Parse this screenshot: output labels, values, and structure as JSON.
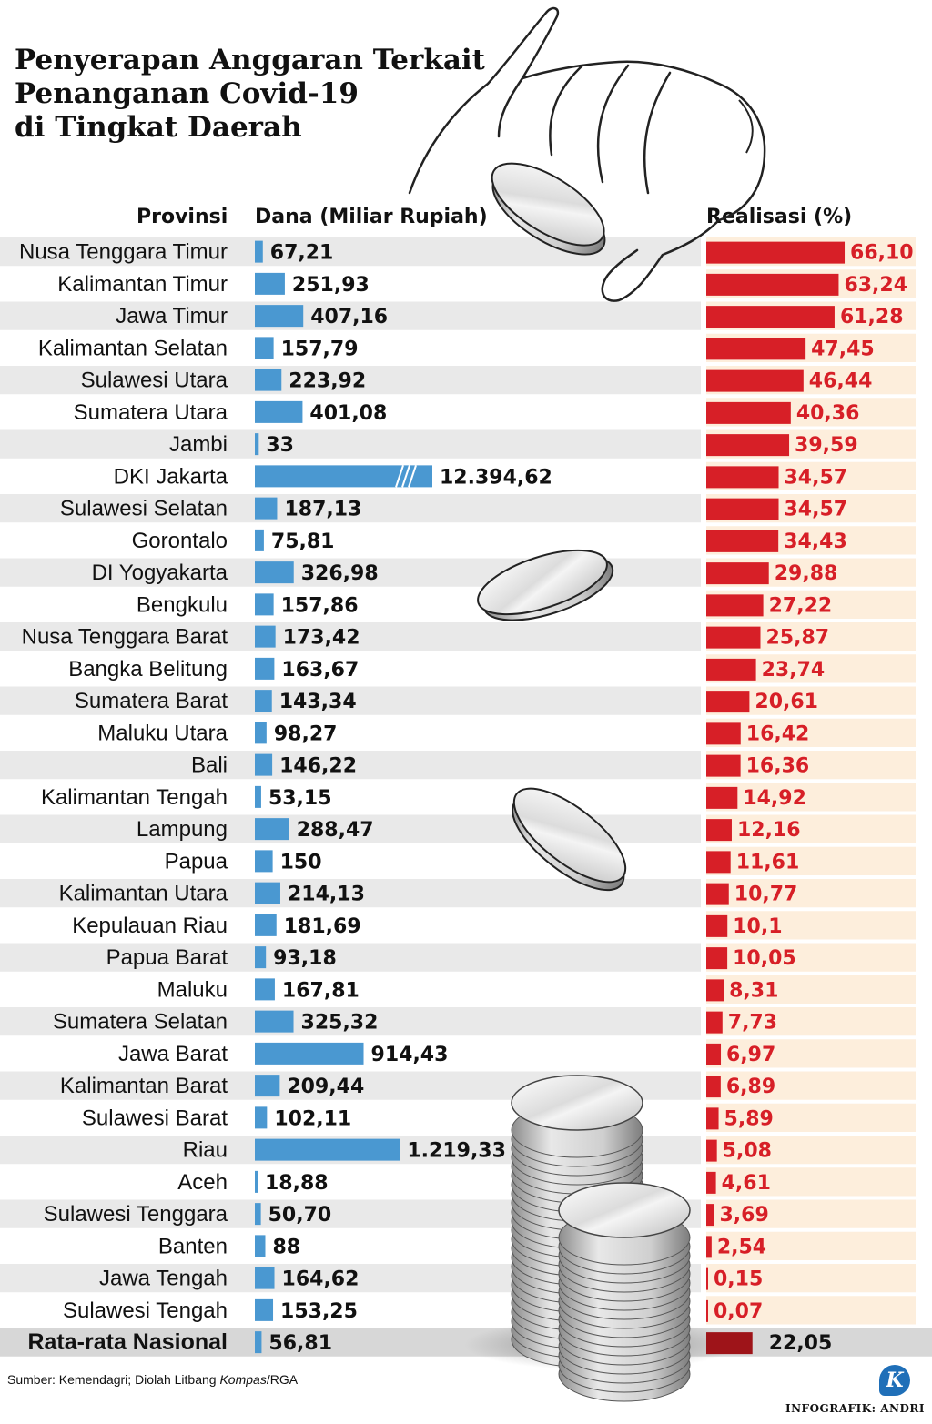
{
  "title_lines": [
    "Penyerapan Anggaran Terkait",
    "Penanganan Covid-19",
    "di Tingkat Daerah"
  ],
  "source": {
    "prefix": "Sumber: Kemendagri; Diolah Litbang ",
    "italic": "Kompas",
    "suffix": "/RGA"
  },
  "credit": "INFOGRAFIK: ANDRI",
  "logo_letter": "K",
  "colors": {
    "dana_bar": "#4a98d1",
    "realisasi_bar": "#d71f27",
    "realisasi_avg_bar": "#9e1419",
    "realisasi_value_text": "#d71f27",
    "stripe_left": "#e9e9e9",
    "stripe_right": "#fdeedc",
    "avg_band": "#d7d7d7"
  },
  "chart_data": {
    "type": "bar",
    "title": "Penyerapan Anggaran Terkait Penanganan Covid-19 di Tingkat Daerah",
    "category_header": "Provinsi",
    "categories": [
      "Nusa Tenggara Timur",
      "Kalimantan Timur",
      "Jawa Timur",
      "Kalimantan Selatan",
      "Sulawesi Utara",
      "Sumatera Utara",
      "Jambi",
      "DKI Jakarta",
      "Sulawesi Selatan",
      "Gorontalo",
      "DI Yogyakarta",
      "Bengkulu",
      "Nusa Tenggara Barat",
      "Bangka Belitung",
      "Sumatera Barat",
      "Maluku Utara",
      "Bali",
      "Kalimantan Tengah",
      "Lampung",
      "Papua",
      "Kalimantan Utara",
      "Kepulauan Riau",
      "Papua Barat",
      "Maluku",
      "Sumatera Selatan",
      "Jawa Barat",
      "Kalimantan Barat",
      "Sulawesi Barat",
      "Riau",
      "Aceh",
      "Sulawesi Tenggara",
      "Banten",
      "Jawa Tengah",
      "Sulawesi Tengah"
    ],
    "series": [
      {
        "name": "Dana (Miliar Rupiah)",
        "values": [
          67.21,
          251.93,
          407.16,
          157.79,
          223.92,
          401.08,
          33,
          12394.62,
          187.13,
          75.81,
          326.98,
          157.86,
          173.42,
          163.67,
          143.34,
          98.27,
          146.22,
          53.15,
          288.47,
          150,
          214.13,
          181.69,
          93.18,
          167.81,
          325.32,
          914.43,
          209.44,
          102.11,
          1219.33,
          18.88,
          50.7,
          88,
          164.62,
          153.25
        ],
        "labels": [
          "67,21",
          "251,93",
          "407,16",
          "157,79",
          "223,92",
          "401,08",
          "33",
          "12.394,62",
          "187,13",
          "75,81",
          "326,98",
          "157,86",
          "173,42",
          "163,67",
          "143,34",
          "98,27",
          "146,22",
          "53,15",
          "288,47",
          "150",
          "214,13",
          "181,69",
          "93,18",
          "167,81",
          "325,32",
          "914,43",
          "209,44",
          "102,11",
          "1.219,33",
          "18,88",
          "50,70",
          "88",
          "164,62",
          "153,25"
        ],
        "axis_break_category": "DKI Jakarta"
      },
      {
        "name": "Realisasi (%)",
        "values": [
          66.1,
          63.24,
          61.28,
          47.45,
          46.44,
          40.36,
          39.59,
          34.57,
          34.57,
          34.43,
          29.88,
          27.22,
          25.87,
          23.74,
          20.61,
          16.42,
          16.36,
          14.92,
          12.16,
          11.61,
          10.77,
          10.1,
          10.05,
          8.31,
          7.73,
          6.97,
          6.89,
          5.89,
          5.08,
          4.61,
          3.69,
          2.54,
          0.15,
          0.07
        ],
        "labels": [
          "66,10",
          "63,24",
          "61,28",
          "47,45",
          "46,44",
          "40,36",
          "39,59",
          "34,57",
          "34,57",
          "34,43",
          "29,88",
          "27,22",
          "25,87",
          "23,74",
          "20,61",
          "16,42",
          "16,36",
          "14,92",
          "12,16",
          "11,61",
          "10,77",
          "10,1",
          "10,05",
          "8,31",
          "7,73",
          "6,97",
          "6,89",
          "5,89",
          "5,08",
          "4,61",
          "3,69",
          "2,54",
          "0,15",
          "0,07"
        ]
      }
    ],
    "national_average": {
      "label": "Rata-rata Nasional",
      "dana": 56.81,
      "dana_label": "56,81",
      "realisasi": 22.05,
      "realisasi_label": "22,05"
    }
  }
}
